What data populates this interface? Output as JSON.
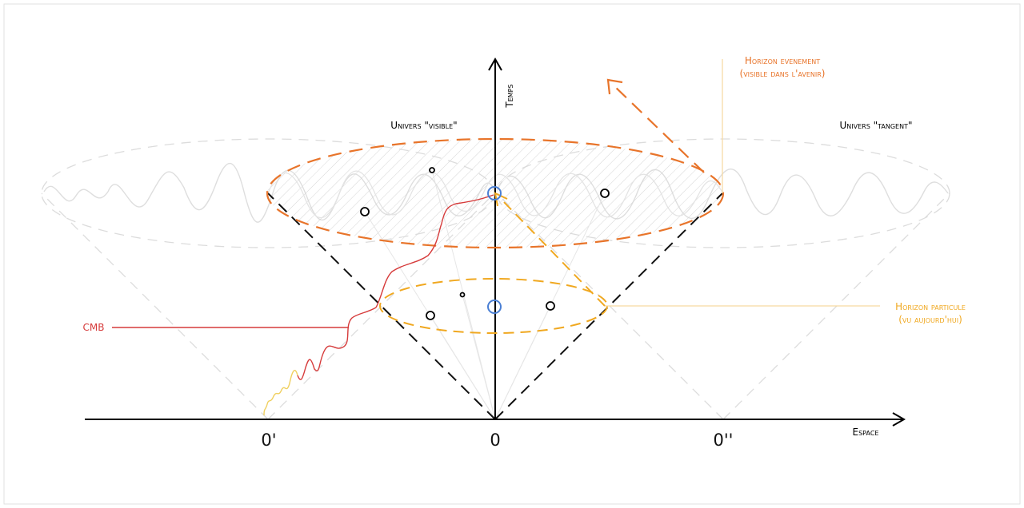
{
  "axes": {
    "time_label": "Temps",
    "space_label": "Espace"
  },
  "labels": {
    "visible_universe": "Univers \"visible\"",
    "tangent_universe": "Univers \"tangent\"",
    "event_horizon_line1": "Horizon evenement",
    "event_horizon_line2": "(visible dans l'avenir)",
    "particle_horizon_line1": "Horizon particule",
    "particle_horizon_line2": "(vu aujourd'hui)",
    "cmb": "CMB"
  },
  "origins": {
    "left": "0'",
    "center": "0",
    "right": "0''"
  },
  "colors": {
    "event_horizon": "#e8742a",
    "particle_horizon": "#f0a820",
    "cmb": "#d63b3b",
    "observer": "#4a7fd4",
    "faint": "#dcdcdc",
    "axis": "#000000"
  }
}
